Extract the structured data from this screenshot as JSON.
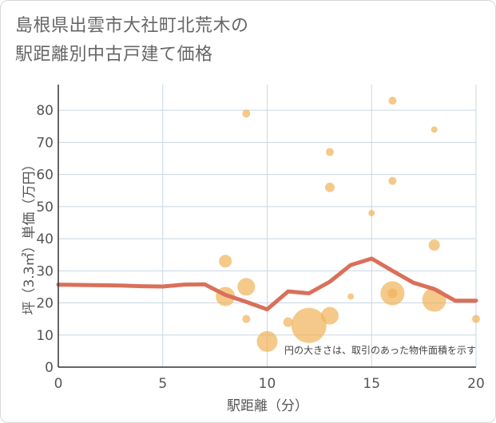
{
  "chart_data": {
    "type": "scatter",
    "title_line1": "島根県出雲市大社町北荒木の",
    "title_line2": "駅距離別中古戸建て価格",
    "xlabel": "駅距離（分）",
    "ylabel": "坪（3.3㎡）単価（万円）",
    "note": "円の大きさは、取引のあった物件面積を示す",
    "xlim": [
      0,
      20
    ],
    "ylim": [
      0,
      88
    ],
    "xticks": [
      0,
      5,
      10,
      15,
      20
    ],
    "yticks": [
      0,
      10,
      20,
      30,
      40,
      50,
      60,
      70,
      80
    ],
    "points": [
      {
        "x": 8,
        "y": 33,
        "r": 8
      },
      {
        "x": 8,
        "y": 22,
        "r": 12
      },
      {
        "x": 9,
        "y": 79,
        "r": 5
      },
      {
        "x": 9,
        "y": 25,
        "r": 11
      },
      {
        "x": 9,
        "y": 15,
        "r": 5
      },
      {
        "x": 10,
        "y": 8,
        "r": 13
      },
      {
        "x": 11,
        "y": 14,
        "r": 6
      },
      {
        "x": 12,
        "y": 13,
        "r": 22
      },
      {
        "x": 13,
        "y": 67,
        "r": 5
      },
      {
        "x": 13,
        "y": 56,
        "r": 6
      },
      {
        "x": 13,
        "y": 16,
        "r": 11
      },
      {
        "x": 14,
        "y": 22,
        "r": 4
      },
      {
        "x": 15,
        "y": 48,
        "r": 4
      },
      {
        "x": 16,
        "y": 83,
        "r": 5
      },
      {
        "x": 16,
        "y": 58,
        "r": 5
      },
      {
        "x": 16,
        "y": 23,
        "r": 15
      },
      {
        "x": 16,
        "y": 23,
        "r": 6
      },
      {
        "x": 18,
        "y": 74,
        "r": 4
      },
      {
        "x": 18,
        "y": 38,
        "r": 7
      },
      {
        "x": 18,
        "y": 21,
        "r": 15
      },
      {
        "x": 20,
        "y": 15,
        "r": 5
      }
    ],
    "trend": [
      {
        "x": 0,
        "y": 25.7
      },
      {
        "x": 1,
        "y": 25.6
      },
      {
        "x": 2,
        "y": 25.5
      },
      {
        "x": 3,
        "y": 25.4
      },
      {
        "x": 4,
        "y": 25.2
      },
      {
        "x": 5,
        "y": 25.1
      },
      {
        "x": 6,
        "y": 25.7
      },
      {
        "x": 7,
        "y": 25.8
      },
      {
        "x": 8,
        "y": 22.5
      },
      {
        "x": 9,
        "y": 20.3
      },
      {
        "x": 10,
        "y": 18.0
      },
      {
        "x": 11,
        "y": 23.6
      },
      {
        "x": 12,
        "y": 23.0
      },
      {
        "x": 13,
        "y": 26.6
      },
      {
        "x": 14,
        "y": 31.8
      },
      {
        "x": 15,
        "y": 33.8
      },
      {
        "x": 16,
        "y": 30.0
      },
      {
        "x": 17,
        "y": 26.3
      },
      {
        "x": 18,
        "y": 24.3
      },
      {
        "x": 19,
        "y": 20.7
      },
      {
        "x": 20,
        "y": 20.7
      }
    ],
    "colors": {
      "bubble": "#f0b45c",
      "trend": "#d9705a",
      "grid": "#c9d6e3",
      "axis": "#333333"
    }
  }
}
